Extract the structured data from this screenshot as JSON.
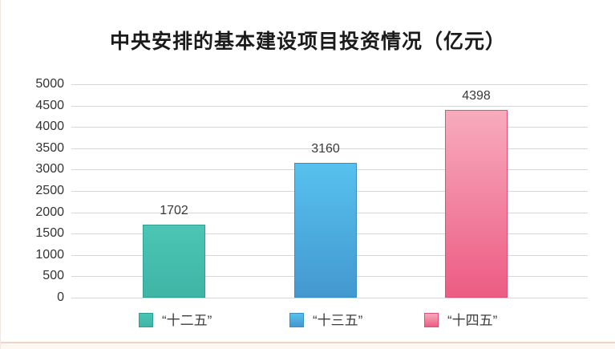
{
  "chart_data": {
    "type": "bar",
    "title": "中央安排的基本建设项目投资情况（亿元）",
    "unit": "亿元",
    "categories": [
      "“十二五”",
      "“十三五”",
      "“十四五”"
    ],
    "values": [
      1702,
      3160,
      4398
    ],
    "value_labels": [
      "1702",
      "3160",
      "4398"
    ],
    "ylim": [
      0,
      5000
    ],
    "ytick_step": 500,
    "yticks": [
      0,
      500,
      1000,
      1500,
      2000,
      2500,
      3000,
      3500,
      4000,
      4500,
      5000
    ],
    "grid": true,
    "legend_position": "bottom",
    "bar_colors": [
      {
        "name": "teal",
        "top": "#4cc5b5",
        "bottom": "#3fb5a6",
        "border": "#2ba093"
      },
      {
        "name": "blue",
        "top": "#57c1ee",
        "bottom": "#4398d0",
        "border": "#3a8ec6"
      },
      {
        "name": "pink",
        "top": "#f8abbd",
        "bottom": "#ec5c83",
        "border": "#e04f78"
      }
    ],
    "text_color": "#333333",
    "gridline_color": "#d7d7d7"
  }
}
